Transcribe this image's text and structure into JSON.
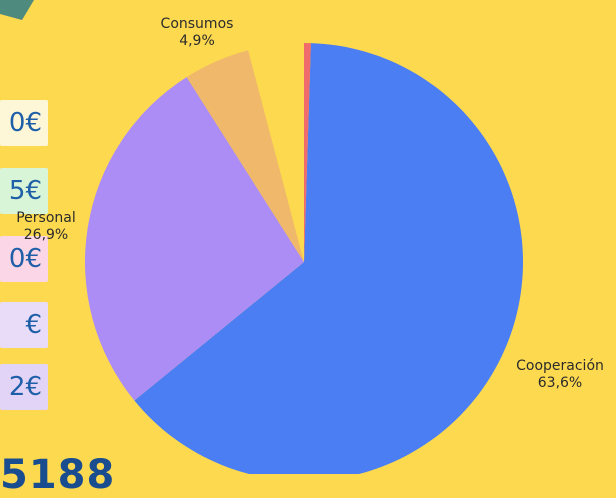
{
  "left_boxes": [
    {
      "text": "0€",
      "color": "#fdf7d8"
    },
    {
      "text": "5€",
      "color": "#d9f5d8"
    },
    {
      "text": "0€",
      "color": "#fbd6e6"
    },
    {
      "text": "€",
      "color": "#e9dcf8"
    },
    {
      "text": "2€",
      "color": "#e2d4f6"
    }
  ],
  "bottom_number": "5188",
  "colors": {
    "background": "#fdd94f",
    "decoration": "#4f8a7e"
  },
  "chart_data": {
    "type": "pie",
    "title": "",
    "slices": [
      {
        "label": "Cooperación",
        "value_text": "63,6%",
        "value": 63.6,
        "color": "#4a7ef2"
      },
      {
        "label": "Personal",
        "value_text": "26,9%",
        "value": 26.9,
        "color": "#ac8cf5"
      },
      {
        "label": "Consumos",
        "value_text": "4,9%",
        "value": 4.9,
        "color": "#efb86a"
      },
      {
        "label": "",
        "value_text": "",
        "value": 4.1,
        "color": "#fdd94f"
      },
      {
        "label": "",
        "value_text": "",
        "value": 0.5,
        "color": "#f06b6b"
      }
    ],
    "start_angle_deg": 1.8,
    "direction": "clockwise"
  }
}
